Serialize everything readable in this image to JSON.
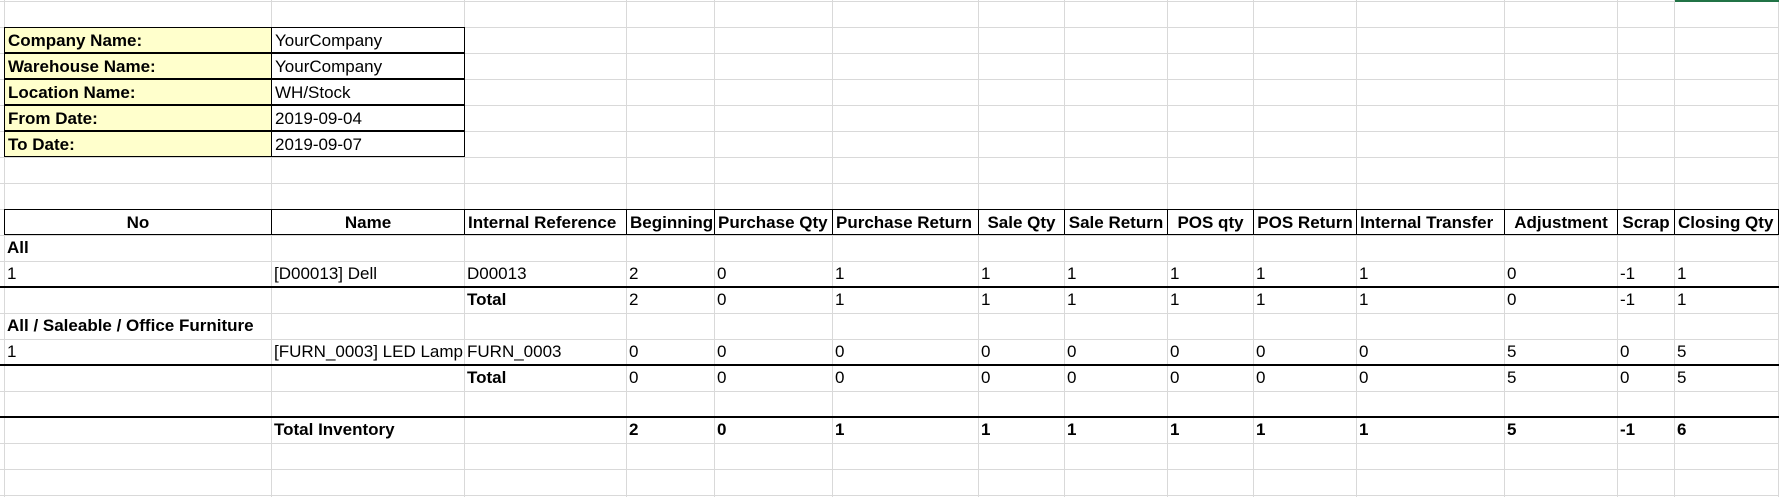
{
  "colors": {
    "label_fill": "#ffffcc",
    "gridline": "#d9d9d9",
    "border": "#000000",
    "accent": "#217346"
  },
  "info": {
    "company_label": "Company Name:",
    "company_value": "YourCompany",
    "warehouse_label": "Warehouse Name:",
    "warehouse_value": "YourCompany",
    "location_label": "Location Name:",
    "location_value": "WH/Stock",
    "from_label": "From Date:",
    "from_value": "2019-09-04",
    "to_label": "To Date:",
    "to_value": "2019-09-07"
  },
  "columns": [
    "No",
    "Name",
    "Internal Reference",
    "Beginning",
    "Purchase Qty",
    "Purchase Return",
    "Sale Qty",
    "Sale Return",
    "POS qty",
    "POS Return",
    "Internal Transfer",
    "Adjustment",
    "Scrap",
    "Closing Qty"
  ],
  "groups": [
    {
      "title": "All",
      "row": [
        "1",
        "[D00013] Dell",
        "D00013",
        "2",
        "0",
        "1",
        "1",
        "1",
        "1",
        "1",
        "1",
        "0",
        "-1",
        "1"
      ],
      "total_label": "Total",
      "total": [
        "2",
        "0",
        "1",
        "1",
        "1",
        "1",
        "1",
        "1",
        "0",
        "-1",
        "1"
      ]
    },
    {
      "title": "All / Saleable / Office Furniture",
      "row": [
        "1",
        "[FURN_0003] LED Lamp",
        "FURN_0003",
        "0",
        "0",
        "0",
        "0",
        "0",
        "0",
        "0",
        "0",
        "5",
        "0",
        "5"
      ],
      "total_label": "Total",
      "total": [
        "0",
        "0",
        "0",
        "0",
        "0",
        "0",
        "0",
        "0",
        "5",
        "0",
        "5"
      ]
    }
  ],
  "grand_total": {
    "label": "Total Inventory",
    "values": [
      "2",
      "0",
      "1",
      "1",
      "1",
      "1",
      "1",
      "1",
      "5",
      "-1",
      "6"
    ]
  }
}
